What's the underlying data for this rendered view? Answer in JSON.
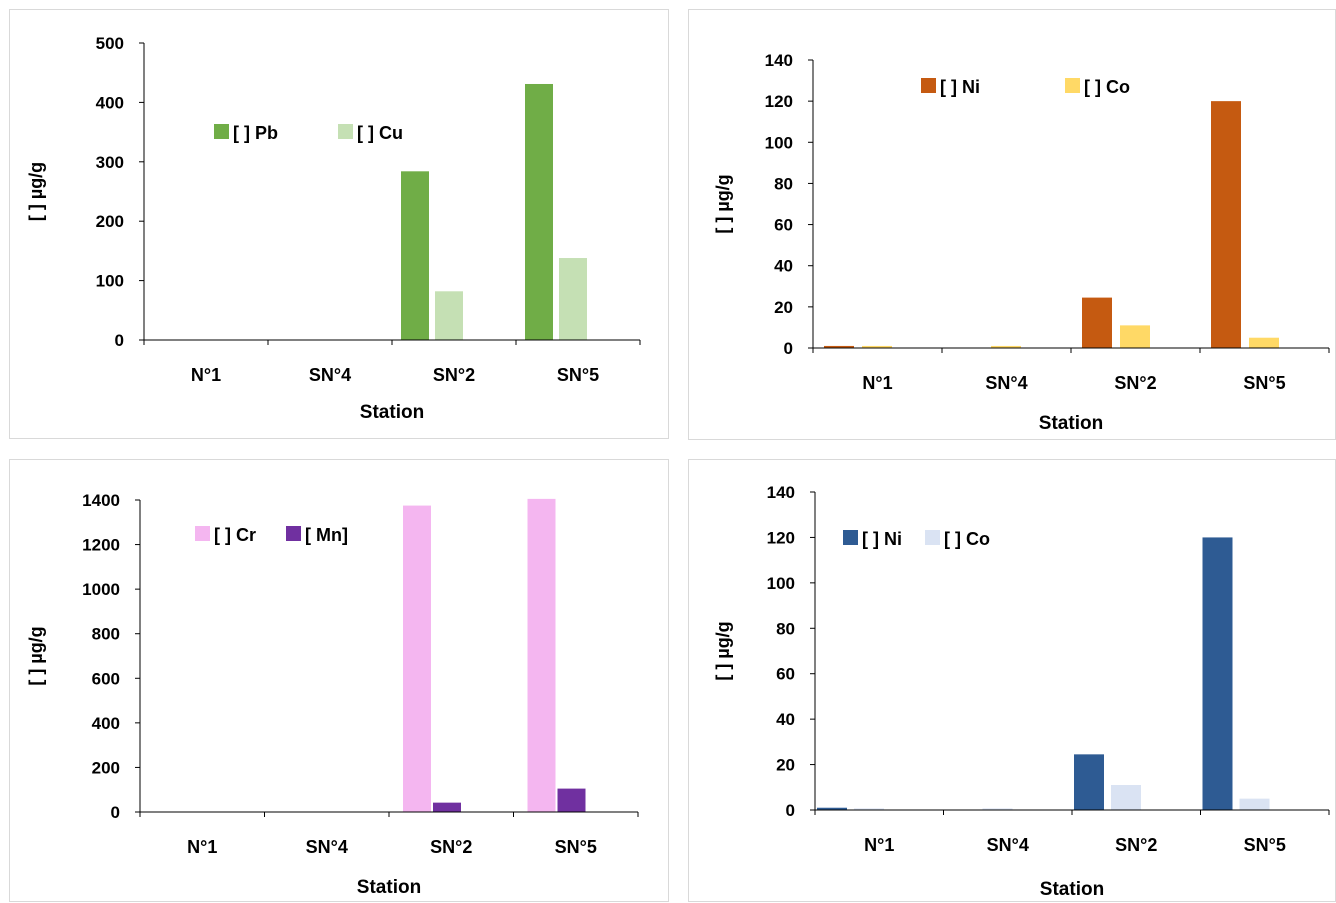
{
  "chart_data": [
    {
      "type": "bar",
      "categories": [
        "N°1",
        "SN°4",
        "SN°2",
        "SN°5"
      ],
      "series": [
        {
          "name": "[ ] Pb",
          "values": [
            0,
            0,
            284,
            431
          ],
          "color": "#70ad47"
        },
        {
          "name": "[ ] Cu",
          "values": [
            0,
            0,
            82,
            138
          ],
          "color": "#c5e0b4"
        }
      ],
      "xlabel": "Station",
      "ylabel": "[ ] µg/g",
      "ylim": [
        0,
        500
      ],
      "yticks": [
        0,
        100,
        200,
        300,
        400,
        500
      ],
      "grid": false,
      "legend": "top-left"
    },
    {
      "type": "bar",
      "categories": [
        "N°1",
        "SN°4",
        "SN°2",
        "SN°5"
      ],
      "series": [
        {
          "name": "[ ] Ni",
          "values": [
            1,
            0,
            24.5,
            120
          ],
          "color": "#c55a11"
        },
        {
          "name": "[ ] Co",
          "values": [
            1,
            1,
            11,
            5
          ],
          "color": "#ffd966"
        }
      ],
      "xlabel": "Station",
      "ylabel": "[ ] µg/g",
      "ylim": [
        0,
        140
      ],
      "yticks": [
        0,
        20,
        40,
        60,
        80,
        100,
        120,
        140
      ],
      "grid": false,
      "legend": "top-center"
    },
    {
      "type": "bar",
      "categories": [
        "N°1",
        "SN°4",
        "SN°2",
        "SN°5"
      ],
      "series": [
        {
          "name": "[ ] Cr",
          "values": [
            0,
            0,
            1375,
            1405
          ],
          "color": "#f4b6f0"
        },
        {
          "name": "[ Mn]",
          "values": [
            0,
            0,
            42,
            105
          ],
          "color": "#7030a0"
        }
      ],
      "xlabel": "Station",
      "ylabel": "[ ] µg/g",
      "ylim": [
        0,
        1400
      ],
      "yticks": [
        0,
        200,
        400,
        600,
        800,
        1000,
        1200,
        1400
      ],
      "grid": false,
      "legend": "top-left"
    },
    {
      "type": "bar",
      "categories": [
        "N°1",
        "SN°4",
        "SN°2",
        "SN°5"
      ],
      "series": [
        {
          "name": "[ ] Ni",
          "values": [
            1,
            0,
            24.5,
            120
          ],
          "color": "#2e5b93"
        },
        {
          "name": "[ ] Co",
          "values": [
            0.7,
            0.7,
            11,
            5
          ],
          "color": "#dae3f3"
        }
      ],
      "xlabel": "Station",
      "ylabel": "[ ] µg/g",
      "ylim": [
        0,
        140
      ],
      "yticks": [
        0,
        20,
        40,
        60,
        80,
        100,
        120,
        140
      ],
      "grid": false,
      "legend": "top-left"
    }
  ]
}
